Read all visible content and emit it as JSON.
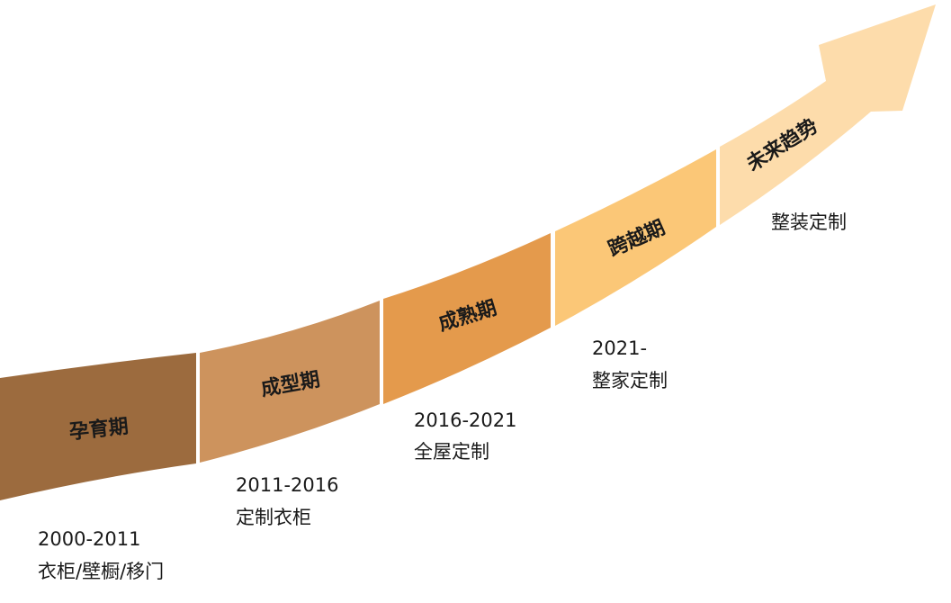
{
  "stages": [
    {
      "label": "孕育期",
      "period": "2000-2011",
      "desc": "衣柜/壁橱/移门"
    },
    {
      "label": "成型期",
      "period": "2011-2016",
      "desc": "定制衣柜"
    },
    {
      "label": "成熟期",
      "period": "2016-2021",
      "desc": "全屋定制"
    },
    {
      "label": "跨越期",
      "period": "2021-",
      "desc": "整家定制"
    },
    {
      "label": "未来趋势",
      "desc": "整装定制"
    }
  ]
}
